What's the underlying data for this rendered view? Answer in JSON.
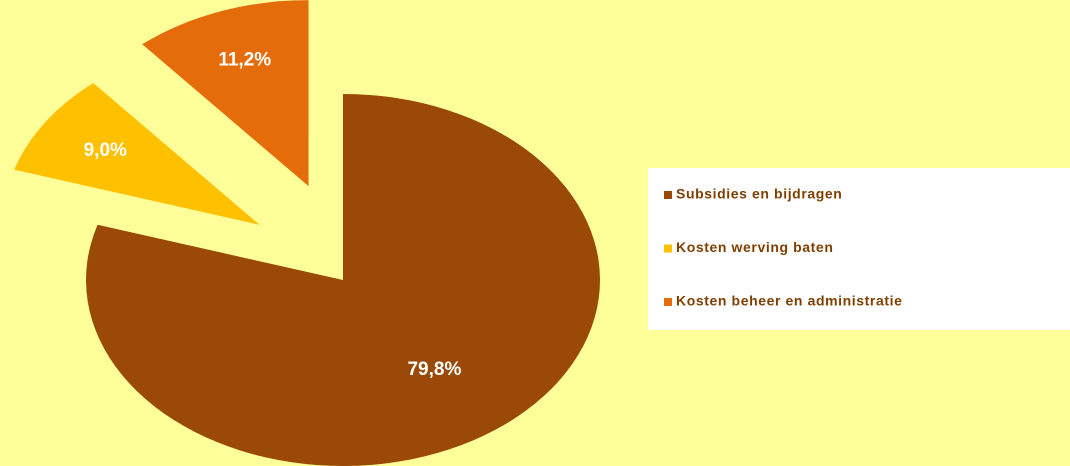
{
  "chart_data": {
    "type": "pie",
    "categories": [
      "Subsidies en bijdragen",
      "Kosten werving baten",
      "Kosten beheer en administratie"
    ],
    "values": [
      79.8,
      9.0,
      11.2
    ],
    "value_labels": [
      "79,8%",
      "9,0%",
      "11,2%"
    ],
    "colors": [
      "#9a4a06",
      "#ffc000",
      "#e46c0a"
    ],
    "legend": "right"
  }
}
